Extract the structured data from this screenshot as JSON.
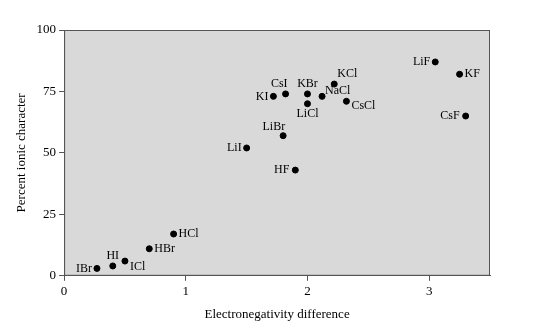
{
  "chart_data": {
    "type": "scatter",
    "x_label": "Electronegativity difference",
    "y_label": "Percent ionic character",
    "point_labels": [
      "IBr",
      "HI",
      "ICl",
      "HBr",
      "HCl",
      "LiI",
      "LiBr",
      "HF",
      "KI",
      "CsI",
      "KBr",
      "LiCl",
      "NaCl",
      "KCl",
      "CsCl",
      "LiF",
      "KF",
      "CsF"
    ],
    "x": [
      0.27,
      0.4,
      0.5,
      0.7,
      0.9,
      1.5,
      1.8,
      1.9,
      1.72,
      1.82,
      2.0,
      2.0,
      2.12,
      2.22,
      2.32,
      3.05,
      3.25,
      3.3
    ],
    "values": [
      3,
      4,
      6,
      11,
      17,
      52,
      57,
      43,
      73,
      74,
      74,
      70,
      73,
      78,
      71,
      87,
      82,
      65
    ],
    "color": "#000000",
    "xlim": [
      0,
      3.5
    ],
    "xticks": [
      0,
      1,
      2,
      3
    ],
    "ylim": [
      0,
      100
    ],
    "yticks": [
      0,
      25,
      50,
      75,
      100
    ],
    "grid": false
  }
}
